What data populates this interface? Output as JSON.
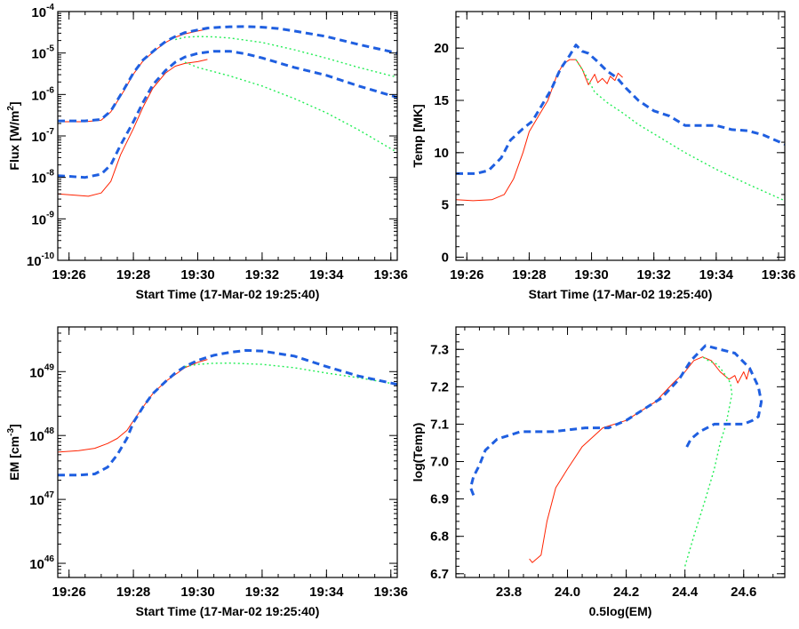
{
  "series_styles": [
    {
      "color": "#ff2200",
      "dash": "",
      "width": 1
    },
    {
      "color": "#22ee55",
      "dash": "2,3",
      "width": 1.4
    },
    {
      "color": "#1f5fe0",
      "dash": "8,5",
      "width": 3
    }
  ],
  "chart_data": [
    {
      "type": "line",
      "panel": "top-left",
      "xlabel": "Start Time (17-Mar-02 19:25:40)",
      "ylabel": "Flux [W/m²]",
      "ylabel_main": "Flux [W/m",
      "ylabel_sup": "2",
      "ylabel_end": "]",
      "yscale": "log",
      "xlim": [
        25.65,
        36.2
      ],
      "ylim": [
        1e-10,
        0.0001
      ],
      "xticks": [
        26,
        28,
        30,
        32,
        34,
        36
      ],
      "xtick_labels": [
        "19:26",
        "19:28",
        "19:30",
        "19:32",
        "19:34",
        "19:36"
      ],
      "yticks": [
        -10,
        -9,
        -8,
        -7,
        -6,
        -5,
        -4
      ],
      "ytick_base": "10",
      "ytick_exps": [
        "-10",
        "-9",
        "-8",
        "-7",
        "-6",
        "-5",
        "-4"
      ],
      "series": [
        {
          "style": 0,
          "x": [
            25.65,
            26.5,
            27.0,
            27.3,
            27.7,
            28.0,
            28.3,
            28.7,
            29.0,
            29.3,
            29.6,
            30.0,
            30.3
          ],
          "y": [
            2.2e-07,
            2.2e-07,
            2.4e-07,
            3.8e-07,
            1.2e-06,
            3.1e-06,
            6.5e-06,
            1.2e-05,
            1.8e-05,
            2.4e-05,
            2.9e-05,
            3.4e-05,
            3.8e-05
          ]
        },
        {
          "style": 0,
          "x": [
            25.65,
            26.2,
            26.6,
            27.0,
            27.3,
            27.6,
            28.0,
            28.3,
            28.6,
            29.0,
            29.3,
            29.6,
            30.0,
            30.3
          ],
          "y": [
            4e-09,
            3.7e-09,
            3.5e-09,
            4.2e-09,
            8e-09,
            3.5e-08,
            1.5e-07,
            5e-07,
            1.4e-06,
            3.3e-06,
            4.8e-06,
            5.6e-06,
            6.2e-06,
            7e-06
          ]
        },
        {
          "style": 1,
          "x": [
            29.3,
            29.6,
            30.0,
            30.5,
            31.0,
            32.0,
            33.0,
            34.0,
            35.0,
            36.2
          ],
          "y": [
            2.1e-05,
            2.4e-05,
            2.5e-05,
            2.45e-05,
            2.3e-05,
            1.8e-05,
            1.2e-05,
            7.5e-06,
            4.5e-06,
            2.6e-06
          ]
        },
        {
          "style": 1,
          "x": [
            29.6,
            30.0,
            31.0,
            32.0,
            33.0,
            34.0,
            35.0,
            36.2
          ],
          "y": [
            6e-06,
            4.5e-06,
            2.8e-06,
            1.6e-06,
            8e-07,
            3.6e-07,
            1.4e-07,
            4e-08
          ]
        },
        {
          "style": 2,
          "x": [
            25.65,
            26.5,
            27.0,
            27.3,
            27.7,
            28.0,
            28.3,
            28.7,
            29.0,
            29.3,
            29.6,
            30.0,
            30.3,
            30.7,
            31.0,
            31.5,
            32.0,
            32.5,
            33.0,
            34.0,
            35.0,
            36.2
          ],
          "y": [
            2.3e-07,
            2.3e-07,
            2.5e-07,
            4e-07,
            1.3e-06,
            3.3e-06,
            6.8e-06,
            1.25e-05,
            1.9e-05,
            2.5e-05,
            3.1e-05,
            3.6e-05,
            4e-05,
            4.2e-05,
            4.3e-05,
            4.35e-05,
            4.2e-05,
            3.9e-05,
            3.4e-05,
            2.5e-05,
            1.6e-05,
            1e-05
          ]
        },
        {
          "style": 2,
          "x": [
            25.65,
            26.5,
            27.0,
            27.3,
            27.6,
            28.0,
            28.3,
            28.6,
            29.0,
            29.3,
            29.6,
            30.0,
            30.5,
            31.0,
            31.5,
            32.0,
            33.0,
            34.0,
            35.0,
            36.2
          ],
          "y": [
            1.1e-08,
            1e-08,
            1.2e-08,
            2e-08,
            6e-08,
            2.2e-07,
            6.5e-07,
            1.7e-06,
            3.8e-06,
            6e-06,
            8e-06,
            9.8e-06,
            1.1e-05,
            1.1e-05,
            9.5e-06,
            7.6e-06,
            4.5e-06,
            2.9e-06,
            1.6e-06,
            8.5e-07
          ]
        }
      ]
    },
    {
      "type": "line",
      "panel": "top-right",
      "xlabel": "Start Time (17-Mar-02 19:25:40)",
      "ylabel": "Temp [MK]",
      "yscale": "linear",
      "xlim": [
        25.65,
        36.2
      ],
      "ylim": [
        -0.3,
        23.5
      ],
      "xticks": [
        26,
        28,
        30,
        32,
        34,
        36
      ],
      "xtick_labels": [
        "19:26",
        "19:28",
        "19:30",
        "19:32",
        "19:34",
        "19:36"
      ],
      "yticks": [
        0,
        5,
        10,
        15,
        20
      ],
      "ytick_labels": [
        "0",
        "5",
        "10",
        "15",
        "20"
      ],
      "series": [
        {
          "style": 0,
          "x": [
            25.65,
            26.2,
            26.8,
            27.2,
            27.5,
            27.8,
            28.0,
            28.3,
            28.6,
            28.9,
            29.1,
            29.3,
            29.5,
            29.7,
            29.9,
            30.1,
            30.2,
            30.35,
            30.5,
            30.6,
            30.75,
            30.85,
            31.0
          ],
          "y": [
            5.5,
            5.4,
            5.5,
            6,
            7.5,
            10,
            12,
            13.5,
            15,
            17.5,
            18.5,
            18.9,
            18.9,
            18,
            16.5,
            17.5,
            16.7,
            17.1,
            16.6,
            17.3,
            16.9,
            17.6,
            17.2
          ]
        },
        {
          "style": 1,
          "x": [
            29.5,
            29.8,
            30.1,
            30.5,
            31.0,
            31.5,
            32.0,
            33.0,
            34.0,
            35.0,
            36.2
          ],
          "y": [
            18.9,
            17.5,
            15.8,
            14.8,
            13.8,
            12.7,
            11.8,
            10,
            8.4,
            7,
            5.4
          ]
        },
        {
          "style": 2,
          "x": [
            25.65,
            26.3,
            26.7,
            27.1,
            27.4,
            27.8,
            28.1,
            28.4,
            28.7,
            29.0,
            29.3,
            29.5,
            29.7,
            29.9,
            30.2,
            30.5,
            30.8,
            31.1,
            31.5,
            32.0,
            32.5,
            33.0,
            33.5,
            34.0,
            34.5,
            35.0,
            35.5,
            36.2
          ],
          "y": [
            8,
            8,
            8.3,
            9.5,
            11.2,
            12.3,
            13,
            14.5,
            16,
            18,
            19.3,
            20.3,
            19.7,
            19.5,
            18.7,
            17.8,
            17.2,
            16.2,
            15,
            14,
            13.5,
            12.6,
            12.6,
            12.6,
            12.2,
            12.1,
            11.7,
            10.8
          ]
        }
      ]
    },
    {
      "type": "line",
      "panel": "bottom-left",
      "xlabel": "Start Time (17-Mar-02 19:25:40)",
      "ylabel": "EM [cm⁻³]",
      "ylabel_main": "EM [cm",
      "ylabel_sup": "-3",
      "ylabel_end": "]",
      "yscale": "log",
      "xlim": [
        25.65,
        36.2
      ],
      "ylim": [
        6e+45,
        5e+49
      ],
      "xticks": [
        26,
        28,
        30,
        32,
        34,
        36
      ],
      "xtick_labels": [
        "19:26",
        "19:28",
        "19:30",
        "19:32",
        "19:34",
        "19:36"
      ],
      "yticks": [
        46,
        47,
        48,
        49
      ],
      "ytick_base": "10",
      "ytick_exps": [
        "46",
        "47",
        "48",
        "49"
      ],
      "series": [
        {
          "style": 0,
          "x": [
            25.65,
            26.3,
            26.8,
            27.2,
            27.5,
            27.8,
            28.0,
            28.3,
            28.6,
            29.0,
            29.3,
            29.6,
            30.0,
            30.3
          ],
          "y": [
            5.5e+47,
            5.8e+47,
            6.3e+47,
            7.5e+47,
            9e+47,
            1.2e+48,
            1.7e+48,
            2.8e+48,
            4.5e+48,
            7e+48,
            9e+48,
            1.15e+49,
            1.4e+49,
            1.55e+49
          ]
        },
        {
          "style": 1,
          "x": [
            29.6,
            30.0,
            30.5,
            31.0,
            32.0,
            33.0,
            34.0,
            35.0,
            36.2
          ],
          "y": [
            1.2e+49,
            1.3e+49,
            1.35e+49,
            1.36e+49,
            1.3e+49,
            1.15e+49,
            9.5e+48,
            8e+48,
            6.3e+48
          ]
        },
        {
          "style": 2,
          "x": [
            25.65,
            26.3,
            26.8,
            27.2,
            27.5,
            27.8,
            28.0,
            28.3,
            28.6,
            29.0,
            29.3,
            29.6,
            30.0,
            30.5,
            31.0,
            31.5,
            32.0,
            33.0,
            34.0,
            35.0,
            36.2
          ],
          "y": [
            2.4e+47,
            2.4e+47,
            2.5e+47,
            3.2e+47,
            5e+47,
            9e+47,
            1.6e+48,
            2.8e+48,
            4.5e+48,
            7e+48,
            9.5e+48,
            1.2e+49,
            1.5e+49,
            1.8e+49,
            2e+49,
            2.15e+49,
            2.1e+49,
            1.75e+49,
            1.2e+49,
            8.5e+48,
            6.3e+48
          ]
        }
      ]
    },
    {
      "type": "line",
      "panel": "bottom-right",
      "xlabel": "0.5log(EM)",
      "ylabel": "log(Temp)",
      "yscale": "linear",
      "xlim": [
        23.62,
        24.74
      ],
      "ylim": [
        6.69,
        7.36
      ],
      "xticks": [
        23.8,
        24.0,
        24.2,
        24.4,
        24.6
      ],
      "xtick_labels": [
        "23.8",
        "24.0",
        "24.2",
        "24.4",
        "24.6"
      ],
      "yticks": [
        6.7,
        6.8,
        6.9,
        7.0,
        7.1,
        7.2,
        7.3
      ],
      "ytick_labels": [
        "6.7",
        "6.8",
        "6.9",
        "7.0",
        "7.1",
        "7.2",
        "7.3"
      ],
      "series": [
        {
          "style": 0,
          "x": [
            23.87,
            23.88,
            23.91,
            23.93,
            23.96,
            24.0,
            24.05,
            24.12,
            24.2,
            24.3,
            24.36,
            24.4,
            24.43,
            24.46,
            24.49,
            24.52,
            24.55,
            24.57,
            24.58,
            24.6,
            24.61,
            24.62,
            24.63
          ],
          "y": [
            6.74,
            6.73,
            6.75,
            6.84,
            6.93,
            6.98,
            7.04,
            7.09,
            7.11,
            7.16,
            7.21,
            7.24,
            7.27,
            7.28,
            7.27,
            7.24,
            7.22,
            7.23,
            7.21,
            7.24,
            7.22,
            7.25,
            7.24
          ]
        },
        {
          "style": 1,
          "x": [
            24.4,
            24.43,
            24.47,
            24.5,
            24.52,
            24.54,
            24.55,
            24.56,
            24.555,
            24.53,
            24.51,
            24.48,
            24.46
          ],
          "y": [
            6.72,
            6.8,
            6.9,
            6.98,
            7.05,
            7.1,
            7.14,
            7.18,
            7.21,
            7.24,
            7.26,
            7.27,
            7.28
          ]
        },
        {
          "style": 2,
          "x": [
            23.68,
            23.67,
            23.68,
            23.7,
            23.72,
            23.76,
            23.84,
            23.95,
            24.06,
            24.14,
            24.2,
            24.26,
            24.32,
            24.38,
            24.42,
            24.47,
            24.52,
            24.57,
            24.62,
            24.65,
            24.66,
            24.65,
            24.63,
            24.6,
            24.56,
            24.5,
            24.45,
            24.42,
            24.4
          ],
          "y": [
            6.91,
            6.93,
            6.96,
            6.99,
            7.03,
            7.06,
            7.08,
            7.08,
            7.09,
            7.09,
            7.11,
            7.14,
            7.17,
            7.22,
            7.27,
            7.31,
            7.3,
            7.29,
            7.25,
            7.2,
            7.16,
            7.12,
            7.11,
            7.1,
            7.1,
            7.1,
            7.08,
            7.06,
            7.03
          ]
        }
      ]
    }
  ]
}
